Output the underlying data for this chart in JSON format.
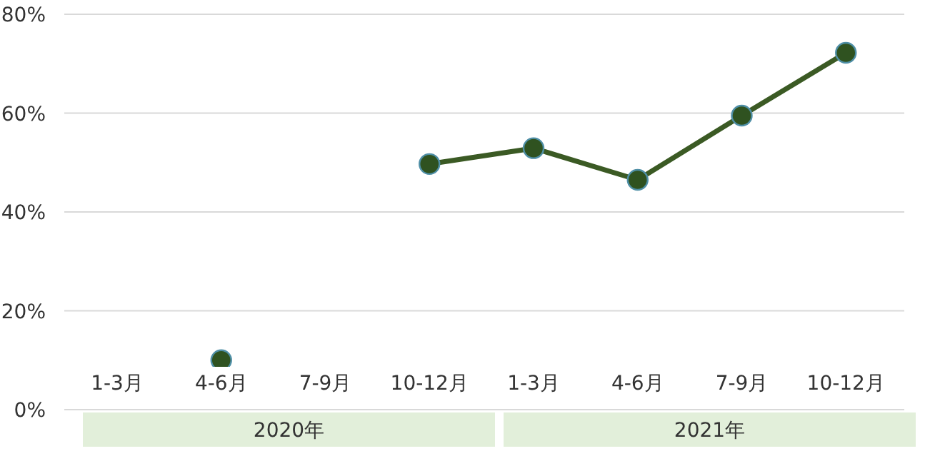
{
  "chart_data": {
    "type": "line",
    "categories": [
      "1-3月",
      "4-6月",
      "7-9月",
      "10-12月",
      "1-3月",
      "4-6月",
      "7-9月",
      "10-12月"
    ],
    "series": [
      {
        "color": "#3b5a24",
        "values": [
          null,
          10,
          null,
          49.7,
          52.9,
          46.5,
          59.5,
          72.2
        ]
      }
    ],
    "ylim": [
      0,
      80
    ],
    "yticks": [
      {
        "value": 0,
        "label": "0%"
      },
      {
        "value": 20,
        "label": "20%"
      },
      {
        "value": 40,
        "label": "40%"
      },
      {
        "value": 60,
        "label": "60%"
      },
      {
        "value": 80,
        "label": "80%"
      }
    ],
    "annotations": [
      "2020年",
      "2021年"
    ],
    "grid": "y",
    "marker": "circle",
    "line_style": "solid"
  }
}
